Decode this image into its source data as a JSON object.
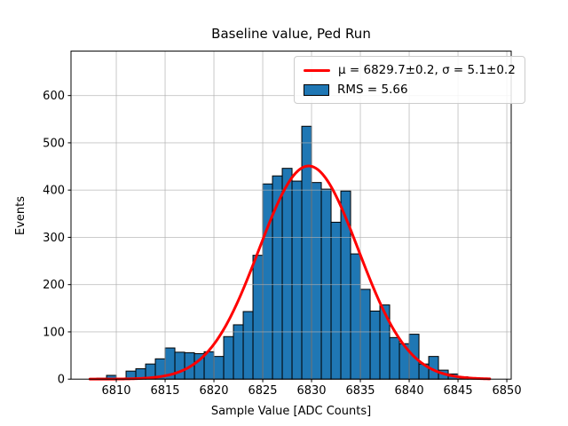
{
  "title": "Baseline value, Ped Run",
  "xlabel": "Sample Value [ADC Counts]",
  "ylabel": "Events",
  "legend": {
    "fit_label": "μ = 6829.7±0.2, σ = 5.1±0.2",
    "rms_label": "RMS = 5.66",
    "fit_swatch": "red-fit-line",
    "rms_swatch": "blue-histogram-patch"
  },
  "colors": {
    "bar_fill": "#1f77b4",
    "bar_edge": "#000000",
    "fit_line": "#ff0000",
    "grid": "#b0b0b0",
    "axis": "#000000",
    "background": "#ffffff"
  },
  "chart_data": {
    "type": "bar",
    "subtype": "histogram",
    "title": "Baseline value, Ped Run",
    "xlabel": "Sample Value [ADC Counts]",
    "ylabel": "Events",
    "bin_start": 6808,
    "bin_width": 1,
    "counts": [
      2,
      8,
      2,
      17,
      22,
      32,
      43,
      66,
      57,
      56,
      54,
      58,
      48,
      90,
      115,
      143,
      262,
      413,
      430,
      446,
      419,
      535,
      416,
      402,
      332,
      398,
      265,
      190,
      144,
      157,
      88,
      75,
      95,
      32,
      48,
      19,
      11,
      5,
      2
    ],
    "xlim": [
      6805.36,
      6850.45
    ],
    "ylim": [
      0,
      694
    ],
    "xticks": [
      6810,
      6815,
      6820,
      6825,
      6830,
      6835,
      6840,
      6845,
      6850
    ],
    "yticks": [
      0,
      100,
      200,
      300,
      400,
      500,
      600
    ],
    "grid": true,
    "legend_position": "upper right",
    "fit": {
      "type": "gaussian",
      "mu": 6829.7,
      "mu_err": 0.2,
      "sigma": 5.1,
      "sigma_err": 0.2,
      "amplitude": 451,
      "x_start": 6807.3,
      "x_end": 6848.3
    },
    "rms": 5.66
  }
}
